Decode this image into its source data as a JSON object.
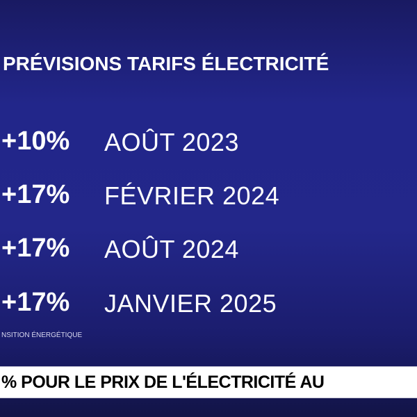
{
  "title": "PRÉVISIONS TARIFS ÉLECTRICITÉ",
  "rows": [
    {
      "change": "+10%",
      "date": "AOÛT 2023"
    },
    {
      "change": "+17%",
      "date": "FÉVRIER 2024"
    },
    {
      "change": "+17%",
      "date": "AOÛT 2024"
    },
    {
      "change": "+17%",
      "date": "JANVIER 2025"
    }
  ],
  "source": "NSITION ÉNERGÉTIQUE",
  "ticker": "% POUR LE PRIX DE L'ÉLECTRICITÉ AU"
}
